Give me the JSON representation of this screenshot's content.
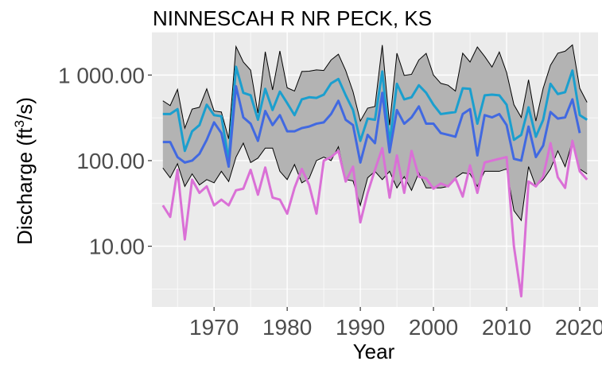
{
  "chart_data": {
    "type": "line",
    "title": "NINNESCAH R NR PECK, KS",
    "xlabel": "Year",
    "ylabel": "Discharge (ft³/s)",
    "ylabel_parts": {
      "prefix": "Discharge (ft",
      "superscript": "3",
      "suffix": "/s)"
    },
    "xlim": [
      1961.5,
      2022.5
    ],
    "ylim": [
      1.95,
      3200
    ],
    "log_y": true,
    "grid": true,
    "x_ticks": [
      1970,
      1980,
      1990,
      2000,
      2010,
      2020
    ],
    "x_tick_labels": [
      "1970",
      "1980",
      "1990",
      "2000",
      "2010",
      "2020"
    ],
    "y_ticks": [
      10,
      100,
      1000
    ],
    "y_tick_labels": [
      "10.00",
      "100.00",
      "1 000.00"
    ],
    "x": [
      1963,
      1964,
      1965,
      1966,
      1967,
      1968,
      1969,
      1970,
      1971,
      1972,
      1973,
      1974,
      1975,
      1976,
      1977,
      1978,
      1979,
      1980,
      1981,
      1982,
      1983,
      1984,
      1985,
      1986,
      1987,
      1988,
      1989,
      1990,
      1991,
      1992,
      1993,
      1994,
      1995,
      1996,
      1997,
      1998,
      1999,
      2000,
      2001,
      2002,
      2003,
      2004,
      2005,
      2006,
      2007,
      2008,
      2009,
      2010,
      2011,
      2012,
      2013,
      2014,
      2015,
      2016,
      2017,
      2018,
      2019,
      2020,
      2021
    ],
    "band": {
      "color": "#b3b3b3",
      "upper": [
        500,
        440,
        680,
        240,
        400,
        420,
        690,
        380,
        370,
        180,
        2150,
        1420,
        1140,
        360,
        1870,
        670,
        1910,
        710,
        650,
        1100,
        1110,
        1150,
        1130,
        1500,
        1750,
        1130,
        640,
        290,
        410,
        430,
        2240,
        260,
        1800,
        990,
        1020,
        1500,
        1790,
        1000,
        800,
        760,
        650,
        1800,
        1420,
        2130,
        1650,
        1240,
        1860,
        1070,
        450,
        320,
        880,
        290,
        700,
        1300,
        1800,
        1900,
        2250,
        700,
        480
      ],
      "lower": [
        82,
        63,
        92,
        50,
        70,
        52,
        60,
        55,
        75,
        57,
        110,
        160,
        95,
        107,
        140,
        140,
        75,
        60,
        90,
        55,
        62,
        100,
        110,
        100,
        145,
        60,
        58,
        30,
        63,
        75,
        60,
        75,
        48,
        65,
        45,
        72,
        48,
        48,
        48,
        50,
        63,
        72,
        70,
        50,
        75,
        75,
        75,
        80,
        26,
        20,
        85,
        50,
        60,
        80,
        130,
        85,
        170,
        80,
        70
      ]
    },
    "series": [
      {
        "color": "#1b9fce",
        "values": [
          350,
          350,
          400,
          130,
          220,
          260,
          450,
          340,
          330,
          100,
          1250,
          620,
          580,
          300,
          690,
          390,
          640,
          470,
          340,
          520,
          550,
          540,
          590,
          800,
          900,
          580,
          390,
          170,
          310,
          300,
          1100,
          160,
          790,
          520,
          550,
          760,
          620,
          450,
          350,
          360,
          370,
          700,
          690,
          270,
          580,
          590,
          580,
          450,
          175,
          200,
          420,
          190,
          300,
          790,
          600,
          630,
          1130,
          340,
          300
        ]
      },
      {
        "color": "#4169e1",
        "values": [
          165,
          165,
          110,
          95,
          100,
          120,
          175,
          280,
          210,
          85,
          740,
          320,
          270,
          170,
          380,
          260,
          340,
          220,
          220,
          240,
          250,
          270,
          280,
          350,
          500,
          300,
          260,
          95,
          200,
          160,
          620,
          125,
          390,
          270,
          320,
          430,
          270,
          270,
          210,
          200,
          190,
          350,
          400,
          115,
          340,
          320,
          350,
          260,
          105,
          100,
          250,
          110,
          150,
          370,
          310,
          320,
          520,
          210,
          null
        ]
      },
      {
        "color": "#da70d6",
        "values": [
          30,
          22,
          78,
          12,
          60,
          42,
          50,
          30,
          35,
          30,
          45,
          47,
          78,
          40,
          83,
          37,
          35,
          24,
          48,
          80,
          52,
          24,
          100,
          110,
          130,
          57,
          85,
          19,
          42,
          78,
          140,
          37,
          115,
          42,
          130,
          65,
          62,
          47,
          54,
          50,
          62,
          38,
          88,
          42,
          95,
          100,
          105,
          110,
          10,
          2.6,
          57,
          50,
          65,
          160,
          64,
          48,
          170,
          75,
          60
        ]
      }
    ]
  }
}
